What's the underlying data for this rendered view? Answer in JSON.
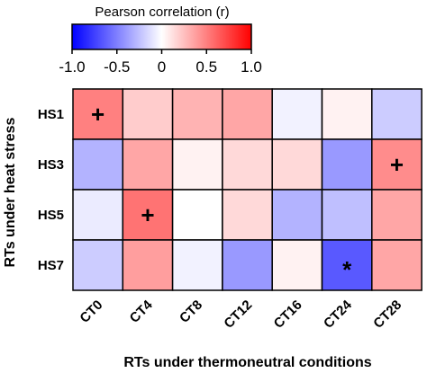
{
  "chart_data": {
    "type": "heatmap",
    "title": "",
    "xlabel": "RTs under thermoneutral conditions",
    "ylabel": "RTs under heat stress",
    "columns": [
      "CT0",
      "CT4",
      "CT8",
      "CT12",
      "CT16",
      "CT24",
      "CT28"
    ],
    "rows": [
      "HS1",
      "HS3",
      "HS5",
      "HS7"
    ],
    "values": [
      [
        0.5,
        0.2,
        0.3,
        0.35,
        -0.05,
        0.05,
        -0.2
      ],
      [
        -0.3,
        0.35,
        0.05,
        0.15,
        0.15,
        -0.4,
        0.45
      ],
      [
        -0.08,
        0.55,
        0.0,
        0.15,
        -0.3,
        -0.25,
        0.35
      ],
      [
        -0.2,
        0.38,
        -0.05,
        -0.4,
        0.05,
        -0.65,
        0.35
      ]
    ],
    "markers": [
      {
        "row": "HS1",
        "col": "CT0",
        "symbol": "+"
      },
      {
        "row": "HS3",
        "col": "CT28",
        "symbol": "+"
      },
      {
        "row": "HS5",
        "col": "CT4",
        "symbol": "+"
      },
      {
        "row": "HS7",
        "col": "CT24",
        "symbol": "*"
      }
    ],
    "colorbar": {
      "title": "Pearson correlation (r)",
      "range": [
        -1.0,
        1.0
      ],
      "ticks": [
        "-1.0",
        "-0.5",
        "0",
        "0.5",
        "1.0"
      ],
      "colors": {
        "low": "#0000ff",
        "mid": "#ffffff",
        "high": "#ff0000"
      }
    },
    "grid": true
  }
}
